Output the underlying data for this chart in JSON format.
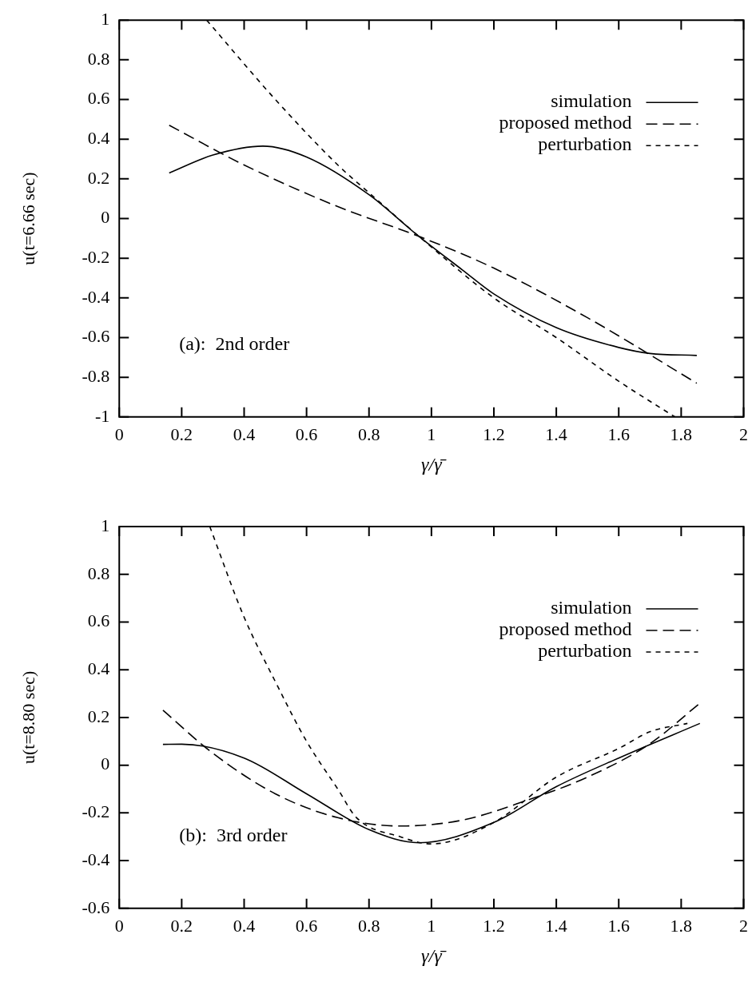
{
  "chart_data": [
    {
      "type": "line",
      "xlabel": "γ/γ̄",
      "ylabel": "u(t=6.66 sec)",
      "xlim": [
        0,
        2
      ],
      "ylim": [
        -1,
        1
      ],
      "xticks": [
        0,
        0.2,
        0.4,
        0.6,
        0.8,
        1,
        1.2,
        1.4,
        1.6,
        1.8,
        2
      ],
      "yticks": [
        -1,
        -0.8,
        -0.6,
        -0.4,
        -0.2,
        0,
        0.2,
        0.4,
        0.6,
        0.8,
        1
      ],
      "grid": false,
      "legend": "top right",
      "marker": "none",
      "annotations": [
        "(a):  2nd order"
      ],
      "series": [
        {
          "name": "simulation",
          "color": "#000000",
          "line_style": "solid",
          "x": [
            0.16,
            0.3,
            0.46,
            0.6,
            0.8,
            0.96,
            1.1,
            1.2,
            1.4,
            1.6,
            1.7,
            1.85
          ],
          "values": [
            0.23,
            0.32,
            0.365,
            0.31,
            0.12,
            -0.09,
            -0.26,
            -0.38,
            -0.55,
            -0.65,
            -0.68,
            -0.69
          ]
        },
        {
          "name": "proposed method",
          "color": "#000000",
          "line_style": "dashed",
          "x": [
            0.16,
            0.4,
            0.7,
            0.96,
            1.2,
            1.5,
            1.85
          ],
          "values": [
            0.47,
            0.27,
            0.06,
            -0.09,
            -0.25,
            -0.5,
            -0.83
          ]
        },
        {
          "name": "perturbation",
          "color": "#000000",
          "line_style": "dotted",
          "x": [
            0.28,
            0.5,
            0.7,
            0.8,
            0.96,
            1.2,
            1.4,
            1.6,
            1.78
          ],
          "values": [
            1,
            0.6,
            0.27,
            0.13,
            -0.09,
            -0.4,
            -0.6,
            -0.82,
            -1
          ]
        }
      ]
    },
    {
      "type": "line",
      "xlabel": "γ/γ̄",
      "ylabel": "u(t=8.80 sec)",
      "xlim": [
        0,
        2
      ],
      "ylim": [
        -0.6,
        1
      ],
      "xticks": [
        0,
        0.2,
        0.4,
        0.6,
        0.8,
        1,
        1.2,
        1.4,
        1.6,
        1.8,
        2
      ],
      "yticks": [
        -0.6,
        -0.4,
        -0.2,
        0,
        0.2,
        0.4,
        0.6,
        0.8,
        1
      ],
      "grid": false,
      "legend": "top right",
      "marker": "none",
      "annotations": [
        "(b):  3rd order"
      ],
      "series": [
        {
          "name": "simulation",
          "color": "#000000",
          "line_style": "solid",
          "x": [
            0.14,
            0.2,
            0.4,
            0.6,
            0.8,
            0.96,
            1.2,
            1.4,
            1.6,
            1.86
          ],
          "values": [
            0.087,
            0.088,
            0.03,
            -0.12,
            -0.27,
            -0.325,
            -0.24,
            -0.09,
            0.03,
            0.175
          ]
        },
        {
          "name": "proposed method",
          "color": "#000000",
          "line_style": "dashed",
          "x": [
            0.14,
            0.3,
            0.5,
            0.7,
            0.9,
            1.1,
            1.3,
            1.5,
            1.7,
            1.86
          ],
          "values": [
            0.23,
            0.05,
            -0.12,
            -0.22,
            -0.255,
            -0.23,
            -0.15,
            -0.05,
            0.09,
            0.26
          ]
        },
        {
          "name": "perturbation",
          "color": "#000000",
          "line_style": "dotted",
          "x": [
            0.29,
            0.4,
            0.5,
            0.6,
            0.7,
            0.76,
            0.9,
            1.0,
            1.2,
            1.4,
            1.6,
            1.7,
            1.82
          ],
          "values": [
            1,
            0.62,
            0.35,
            0.1,
            -0.1,
            -0.22,
            -0.3,
            -0.33,
            -0.24,
            -0.05,
            0.07,
            0.14,
            0.175
          ]
        }
      ]
    }
  ]
}
